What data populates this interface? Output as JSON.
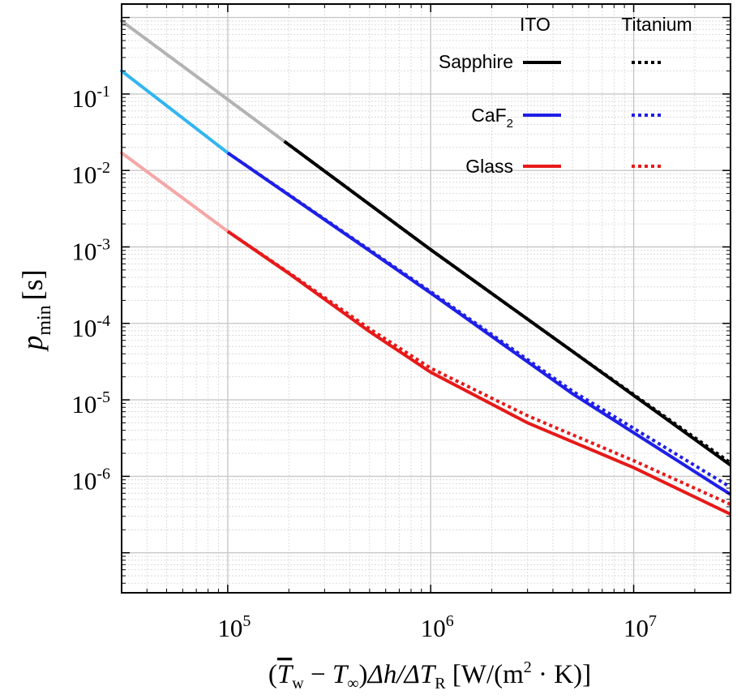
{
  "chart_data": {
    "type": "line",
    "title": "",
    "xscale": "log",
    "yscale": "log",
    "xlim": [
      30000,
      30000000
    ],
    "ylim": [
      3e-08,
      1.5
    ],
    "grid": true,
    "ylabel": {
      "italic": "p",
      "sub": "min",
      "unit": "[s]"
    },
    "xlabel": {
      "open": "(",
      "tw": "T",
      "tw_sub": "w",
      "minus": " − ",
      "tinf": "T",
      "tinf_sub": "∞",
      "close": ")",
      "dh": "Δh/ΔT",
      "dh_sub": "R",
      "units_open": " [W/(m",
      "units_sup": "2",
      "units_close": " · K)]"
    },
    "x_ticks": [
      {
        "value": 100000,
        "base": "10",
        "exp": "5"
      },
      {
        "value": 1000000,
        "base": "10",
        "exp": "6"
      },
      {
        "value": 10000000,
        "base": "10",
        "exp": "7"
      }
    ],
    "y_ticks": [
      {
        "value": 0.1,
        "base": "10",
        "exp": "-1"
      },
      {
        "value": 0.01,
        "base": "10",
        "exp": "-2"
      },
      {
        "value": 0.001,
        "base": "10",
        "exp": "-3"
      },
      {
        "value": 0.0001,
        "base": "10",
        "exp": "-4"
      },
      {
        "value": 1e-05,
        "base": "10",
        "exp": "-5"
      },
      {
        "value": 1e-06,
        "base": "10",
        "exp": "-6"
      }
    ],
    "legend": {
      "position": "top-right",
      "col_ito": "ITO",
      "col_titanium": "Titanium",
      "rows": [
        {
          "label": "Sapphire",
          "sub": "",
          "color": "#000000"
        },
        {
          "label": "CaF",
          "sub": "2",
          "color": "#1f1fe6"
        },
        {
          "label": "Glass",
          "sub": "",
          "color": "#e61a1a"
        }
      ]
    },
    "series": [
      {
        "material": "Sapphire",
        "coating": "ITO",
        "style": "solid",
        "color": "#000000",
        "faded_color": "#b3b3b3",
        "fade_until_x": 190000,
        "x": [
          30000,
          190000,
          1000000,
          5000000,
          30000000
        ],
        "y": [
          0.9,
          0.024,
          0.00092,
          4.3e-05,
          1.4e-06
        ]
      },
      {
        "material": "Sapphire",
        "coating": "Titanium",
        "style": "dotted",
        "color": "#000000",
        "faded_color": "#b3b3b3",
        "fade_until_x": 190000,
        "x": [
          30000,
          190000,
          1000000,
          5000000,
          30000000
        ],
        "y": [
          0.9,
          0.024,
          0.00092,
          4.3e-05,
          1.5e-06
        ]
      },
      {
        "material": "CaF2",
        "coating": "ITO",
        "style": "solid",
        "color": "#1f1fe6",
        "faded_color": "#33b5f0",
        "fade_until_x": 100000,
        "x": [
          30000,
          100000,
          1000000,
          5000000,
          30000000
        ],
        "y": [
          0.2,
          0.017,
          0.00025,
          1.2e-05,
          5.8e-07
        ]
      },
      {
        "material": "CaF2",
        "coating": "Titanium",
        "style": "dotted",
        "color": "#1f1fe6",
        "faded_color": "#33b5f0",
        "fade_until_x": 100000,
        "x": [
          30000,
          100000,
          1000000,
          5000000,
          30000000
        ],
        "y": [
          0.2,
          0.017,
          0.00026,
          1.3e-05,
          7.2e-07
        ]
      },
      {
        "material": "Glass",
        "coating": "ITO",
        "style": "solid",
        "color": "#e61a1a",
        "faded_color": "#f5a6a6",
        "fade_until_x": 100000,
        "x": [
          30000,
          100000,
          200000,
          500000,
          1000000,
          3000000,
          10000000,
          30000000
        ],
        "y": [
          0.017,
          0.0016,
          0.00045,
          7.8e-05,
          2.3e-05,
          5e-06,
          1.3e-06,
          3.2e-07
        ]
      },
      {
        "material": "Glass",
        "coating": "Titanium",
        "style": "dotted",
        "color": "#e61a1a",
        "faded_color": "#f5a6a6",
        "fade_until_x": 100000,
        "x": [
          30000,
          100000,
          200000,
          500000,
          1000000,
          3000000,
          10000000,
          30000000
        ],
        "y": [
          0.017,
          0.0016,
          0.00046,
          8.5e-05,
          2.6e-05,
          6.2e-06,
          1.6e-06,
          4.3e-07
        ]
      }
    ]
  }
}
